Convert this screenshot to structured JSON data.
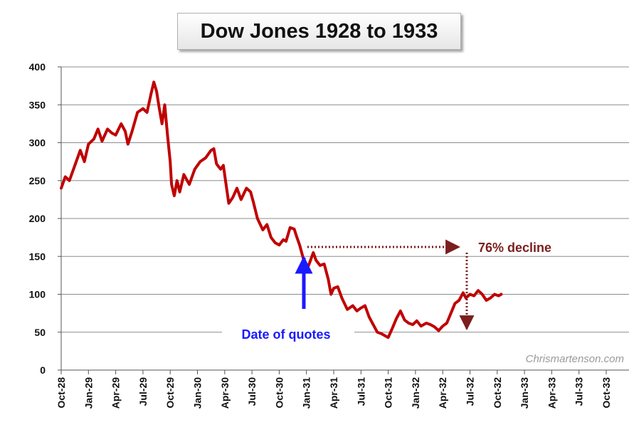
{
  "chart_data": {
    "type": "line",
    "title": "Dow Jones 1928 to 1933",
    "xlabel": "",
    "ylabel": "",
    "ylim": [
      0,
      400
    ],
    "yticks": [
      0,
      50,
      100,
      150,
      200,
      250,
      300,
      350,
      400
    ],
    "categories": [
      "Oct-28",
      "Jan-29",
      "Apr-29",
      "Jul-29",
      "Oct-29",
      "Jan-30",
      "Apr-30",
      "Jul-30",
      "Oct-30",
      "Jan-31",
      "Apr-31",
      "Jul-31",
      "Oct-31",
      "Jan-32",
      "Apr-32",
      "Jul-32",
      "Oct-32",
      "Jan-33",
      "Apr-33",
      "Jul-33",
      "Oct-33"
    ],
    "grid": "horizontal",
    "series": [
      {
        "color": "#c00000",
        "points": [
          [
            0.0,
            240
          ],
          [
            0.15,
            255
          ],
          [
            0.3,
            250
          ],
          [
            0.5,
            270
          ],
          [
            0.7,
            290
          ],
          [
            0.85,
            275
          ],
          [
            1.0,
            298
          ],
          [
            1.2,
            305
          ],
          [
            1.35,
            318
          ],
          [
            1.5,
            302
          ],
          [
            1.7,
            318
          ],
          [
            1.85,
            313
          ],
          [
            2.0,
            310
          ],
          [
            2.2,
            325
          ],
          [
            2.35,
            315
          ],
          [
            2.45,
            298
          ],
          [
            2.6,
            315
          ],
          [
            2.8,
            340
          ],
          [
            3.0,
            345
          ],
          [
            3.15,
            340
          ],
          [
            3.3,
            365
          ],
          [
            3.4,
            380
          ],
          [
            3.5,
            368
          ],
          [
            3.6,
            345
          ],
          [
            3.7,
            325
          ],
          [
            3.8,
            350
          ],
          [
            3.9,
            310
          ],
          [
            4.0,
            275
          ],
          [
            4.05,
            245
          ],
          [
            4.15,
            230
          ],
          [
            4.25,
            250
          ],
          [
            4.35,
            235
          ],
          [
            4.5,
            258
          ],
          [
            4.7,
            245
          ],
          [
            4.9,
            265
          ],
          [
            5.1,
            275
          ],
          [
            5.3,
            280
          ],
          [
            5.5,
            290
          ],
          [
            5.6,
            292
          ],
          [
            5.7,
            272
          ],
          [
            5.85,
            265
          ],
          [
            5.95,
            270
          ],
          [
            6.05,
            245
          ],
          [
            6.15,
            220
          ],
          [
            6.3,
            228
          ],
          [
            6.45,
            240
          ],
          [
            6.6,
            225
          ],
          [
            6.8,
            240
          ],
          [
            6.95,
            235
          ],
          [
            7.05,
            222
          ],
          [
            7.2,
            200
          ],
          [
            7.4,
            185
          ],
          [
            7.55,
            192
          ],
          [
            7.7,
            175
          ],
          [
            7.85,
            168
          ],
          [
            8.0,
            165
          ],
          [
            8.15,
            172
          ],
          [
            8.25,
            170
          ],
          [
            8.4,
            188
          ],
          [
            8.55,
            186
          ],
          [
            8.65,
            175
          ],
          [
            8.75,
            165
          ],
          [
            8.9,
            145
          ],
          [
            9.0,
            132
          ],
          [
            9.1,
            140
          ],
          [
            9.25,
            155
          ],
          [
            9.35,
            145
          ],
          [
            9.5,
            138
          ],
          [
            9.65,
            140
          ],
          [
            9.8,
            120
          ],
          [
            9.9,
            100
          ],
          [
            10.0,
            108
          ],
          [
            10.15,
            110
          ],
          [
            10.3,
            95
          ],
          [
            10.5,
            80
          ],
          [
            10.7,
            85
          ],
          [
            10.85,
            78
          ],
          [
            11.0,
            82
          ],
          [
            11.15,
            85
          ],
          [
            11.3,
            70
          ],
          [
            11.45,
            60
          ],
          [
            11.6,
            50
          ],
          [
            11.75,
            48
          ],
          [
            11.9,
            45
          ],
          [
            12.0,
            43
          ],
          [
            12.15,
            55
          ],
          [
            12.3,
            68
          ],
          [
            12.45,
            78
          ],
          [
            12.6,
            66
          ],
          [
            12.75,
            62
          ],
          [
            12.9,
            60
          ],
          [
            13.05,
            65
          ],
          [
            13.2,
            58
          ],
          [
            13.4,
            62
          ],
          [
            13.55,
            60
          ],
          [
            13.7,
            57
          ],
          [
            13.85,
            52
          ],
          [
            14.0,
            58
          ],
          [
            14.15,
            62
          ],
          [
            14.3,
            75
          ],
          [
            14.45,
            88
          ],
          [
            14.6,
            92
          ],
          [
            14.75,
            102
          ],
          [
            14.85,
            95
          ],
          [
            15.0,
            100
          ],
          [
            15.15,
            98
          ],
          [
            15.3,
            105
          ],
          [
            15.45,
            100
          ],
          [
            15.6,
            92
          ],
          [
            15.75,
            95
          ],
          [
            15.9,
            100
          ],
          [
            16.05,
            98
          ],
          [
            16.15,
            100
          ]
        ]
      }
    ],
    "annotations": [
      {
        "text": "76% decline",
        "color": "#7b1e1e"
      },
      {
        "text": "Date of quotes",
        "color": "#1a1aff"
      }
    ],
    "watermark": "Chrismartenson.com"
  }
}
